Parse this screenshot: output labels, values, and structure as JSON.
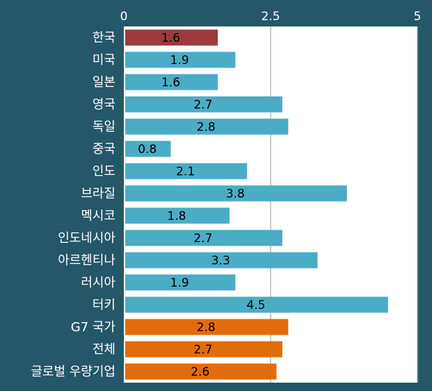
{
  "chart_data": {
    "type": "bar",
    "orientation": "horizontal",
    "title": "",
    "xlabel": "",
    "ylabel": "",
    "xlim": [
      0,
      5
    ],
    "x_ticks": [
      "0",
      "2.5",
      "5"
    ],
    "x_axis_position": "top",
    "grid": true,
    "legend": "none",
    "categories": [
      "한국",
      "미국",
      "일본",
      "영국",
      "독일",
      "중국",
      "인도",
      "브라질",
      "멕시코",
      "인도네시아",
      "아르헨티나",
      "러시아",
      "터키",
      "G7 국가",
      "전체",
      "글로벌 우량기업"
    ],
    "values": [
      1.6,
      1.9,
      1.6,
      2.7,
      2.8,
      0.8,
      2.1,
      3.8,
      1.8,
      2.7,
      3.3,
      1.9,
      4.5,
      2.8,
      2.7,
      2.6
    ],
    "value_labels": [
      "1.6",
      "1.9",
      "1.6",
      "2.7",
      "2.8",
      "0.8",
      "2.1",
      "3.8",
      "1.8",
      "2.7",
      "3.3",
      "1.9",
      "4.5",
      "2.8",
      "2.7",
      "2.6"
    ],
    "bar_colors": [
      "#9B3B3B",
      "#4BACC6",
      "#4BACC6",
      "#4BACC6",
      "#4BACC6",
      "#4BACC6",
      "#4BACC6",
      "#4BACC6",
      "#4BACC6",
      "#4BACC6",
      "#4BACC6",
      "#4BACC6",
      "#4BACC6",
      "#E36C0A",
      "#E36C0A",
      "#E36C0A"
    ],
    "colors": {
      "background": "#245868",
      "plot_background": "#FFFFFF",
      "gridline": "#A6A6A6",
      "axis_text": "#FFFFFF",
      "value_text": "#000000"
    }
  }
}
